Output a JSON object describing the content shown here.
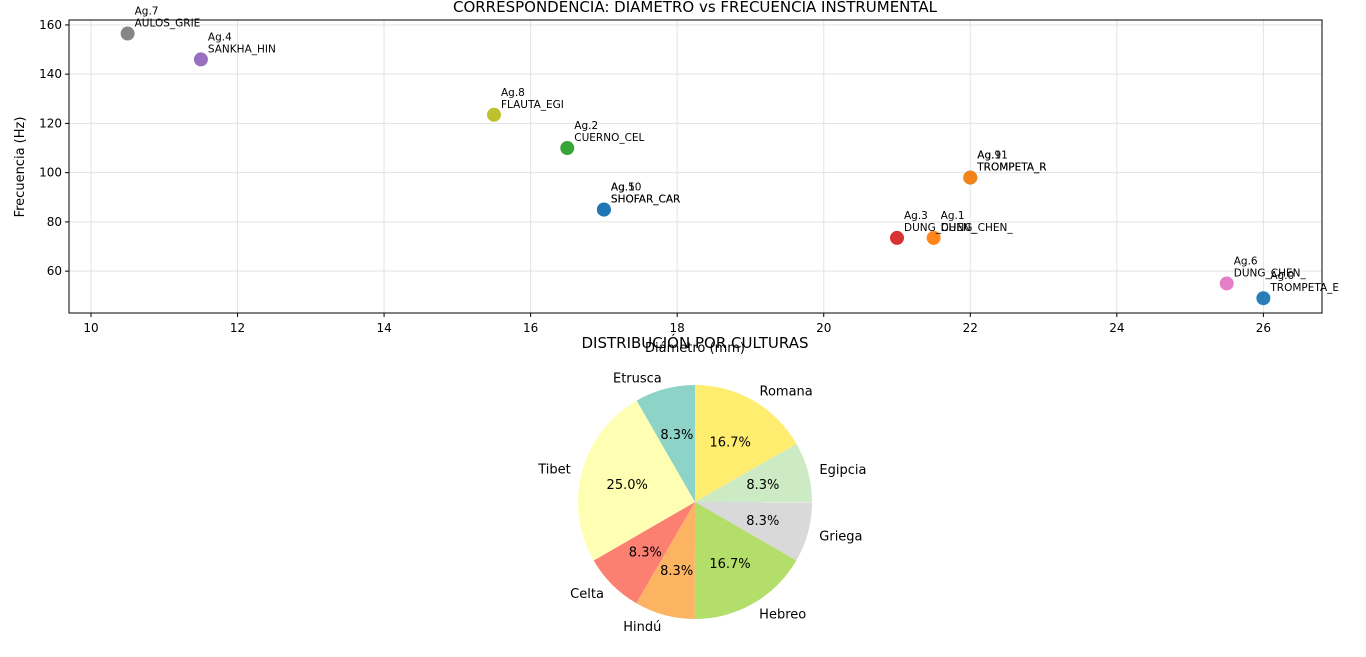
{
  "chart_data": [
    {
      "type": "scatter",
      "title": "CORRESPONDENCIA: DIÁMETRO vs FRECUENCIA INSTRUMENTAL",
      "xlabel": "Diámetro (mm)",
      "ylabel": "Frecuencia (Hz)",
      "xlim": [
        9.7,
        26.8
      ],
      "ylim": [
        43,
        162
      ],
      "xticks": [
        10,
        12,
        14,
        16,
        18,
        20,
        22,
        24,
        26
      ],
      "yticks": [
        60,
        80,
        100,
        120,
        140,
        160
      ],
      "grid": true,
      "points": [
        {
          "id": "Ag.1",
          "label": "DUNG_CHEN_",
          "x": 21.5,
          "y": 73.5,
          "color": "#ff7f0e"
        },
        {
          "id": "Ag.2",
          "label": "CUERNO_CEL",
          "x": 16.5,
          "y": 110.0,
          "color": "#2ca02c"
        },
        {
          "id": "Ag.3",
          "label": "DUNG_CHEN_",
          "x": 21.0,
          "y": 73.5,
          "color": "#d62728"
        },
        {
          "id": "Ag.4",
          "label": "SANKHA_HIN",
          "x": 11.5,
          "y": 146.0,
          "color": "#9467bd"
        },
        {
          "id": "Ag.5",
          "label": "SHOFAR_CAR",
          "x": 17.0,
          "y": 85.0,
          "color": "#1f77b4"
        },
        {
          "id": "Ag.6",
          "label": "DUNG_CHEN_",
          "x": 25.5,
          "y": 55.0,
          "color": "#e377c2"
        },
        {
          "id": "Ag.7",
          "label": "AULOS_GRIE",
          "x": 10.5,
          "y": 156.5,
          "color": "#7f7f7f"
        },
        {
          "id": "Ag.8",
          "label": "FLAUTA_EGI",
          "x": 15.5,
          "y": 123.5,
          "color": "#bcbd22"
        },
        {
          "id": "Ag.9",
          "label": "TROMPETA_R",
          "x": 22.0,
          "y": 98.0,
          "color": "#17becf"
        },
        {
          "id": "Ag.10",
          "label": "SHOFAR_CAR",
          "x": 17.0,
          "y": 85.0,
          "color": "#1f77b4"
        },
        {
          "id": "Ag.11",
          "label": "TROMPETA_R",
          "x": 22.0,
          "y": 98.0,
          "color": "#ff7f0e"
        },
        {
          "id": "Ag.0",
          "label": "TROMPETA_E",
          "x": 26.0,
          "y": 49.0,
          "color": "#1f77b4"
        }
      ]
    },
    {
      "type": "pie",
      "title": "DISTRIBUCIÓN POR CULTURAS",
      "slices": [
        {
          "label": "Romana",
          "value": 16.7,
          "pct": "16.7%",
          "color": "#ffed6f"
        },
        {
          "label": "Egipcia",
          "value": 8.3,
          "pct": "8.3%",
          "color": "#ccebc5"
        },
        {
          "label": "Griega",
          "value": 8.3,
          "pct": "8.3%",
          "color": "#d9d9d9"
        },
        {
          "label": "Hebreo",
          "value": 16.7,
          "pct": "16.7%",
          "color": "#b3de69"
        },
        {
          "label": "Hindú",
          "value": 8.3,
          "pct": "8.3%",
          "color": "#fdb462"
        },
        {
          "label": "Celta",
          "value": 8.3,
          "pct": "8.3%",
          "color": "#fb8072"
        },
        {
          "label": "Tibet",
          "value": 25.0,
          "pct": "25.0%",
          "color": "#ffffb3"
        },
        {
          "label": "Etrusca",
          "value": 8.3,
          "pct": "8.3%",
          "color": "#8dd3c7"
        }
      ]
    }
  ]
}
